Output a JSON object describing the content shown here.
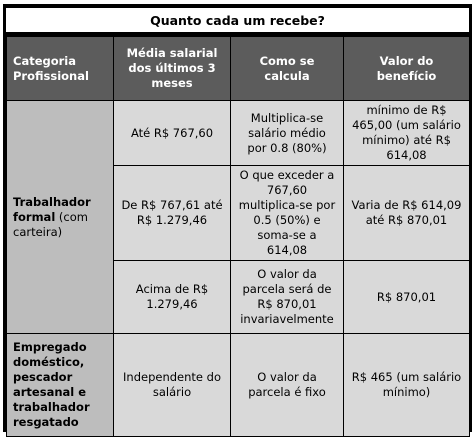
{
  "title": "Quanto cada um recebe?",
  "headers": [
    "Categoria Profissional",
    "Média salarial dos últimos 3 meses",
    "Como se calcula",
    "Valor do benefício"
  ],
  "categories": [
    {
      "bold": "Trabalhador formal",
      "normal": " (com carteira)"
    },
    {
      "bold": "Empregado doméstico, pescador artesanal e trabalhador resgatado",
      "normal": ""
    }
  ],
  "rows": [
    {
      "media": "Até R$ 767,60",
      "calculo": "Multiplica-se salário médio por 0.8 (80%)",
      "valor": "mínimo de R$ 465,00 (um salário mínimo) até R$ 614,08"
    },
    {
      "media": "De R$ 767,61 até R$ 1.279,46",
      "calculo": "O que exceder a 767,60 multiplica-se por 0.5 (50%) e soma-se a 614,08",
      "valor": "Varia de R$ 614,09 até R$ 870,01"
    },
    {
      "media": "Acima de R$ 1.279,46",
      "calculo": "O valor da parcela será de R$ 870,01 invariavelmente",
      "valor": "R$ 870,01"
    },
    {
      "media": "Independente do salário",
      "calculo": "O valor da parcela é fixo",
      "valor": "R$ 465 (um salário mínimo)"
    }
  ]
}
